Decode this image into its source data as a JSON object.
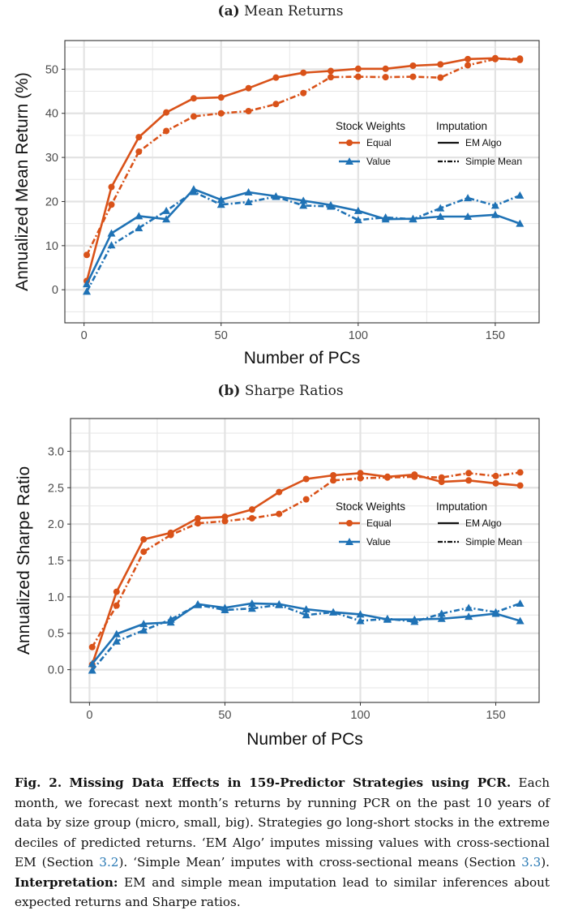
{
  "panels": [
    {
      "label": "(a)",
      "title": "Mean Returns"
    },
    {
      "label": "(b)",
      "title": "Sharpe Ratios"
    }
  ],
  "legend": {
    "weights_title": "Stock Weights",
    "weights": [
      "Equal",
      "Value"
    ],
    "imputation_title": "Imputation",
    "imputation": [
      "EM Algo",
      "Simple Mean"
    ]
  },
  "colors": {
    "equal": "#d95219",
    "value": "#1f72b5",
    "grid": "#e6e6e6"
  },
  "chart_data": [
    {
      "type": "line",
      "title": "Mean Returns",
      "xlabel": "Number of PCs",
      "ylabel": "Annualized Mean Return (%)",
      "xlim": [
        -7,
        166
      ],
      "ylim": [
        -7.5,
        56.5
      ],
      "xticks": [
        0,
        50,
        100,
        150
      ],
      "yticks": [
        0,
        10,
        20,
        30,
        40,
        50
      ],
      "ytick_labels": [
        "0",
        "10",
        "20",
        "30",
        "40",
        "50"
      ],
      "grid": true,
      "legend_position": "right-middle",
      "x": [
        1,
        10,
        20,
        30,
        40,
        50,
        60,
        70,
        80,
        90,
        100,
        110,
        120,
        130,
        140,
        150,
        159
      ],
      "series": [
        {
          "name": "Equal",
          "imputation": "EM Algo",
          "values": [
            2.0,
            23.3,
            34.6,
            40.2,
            43.4,
            43.6,
            45.7,
            48.1,
            49.2,
            49.6,
            50.1,
            50.1,
            50.8,
            51.1,
            52.3,
            52.5,
            52.1
          ]
        },
        {
          "name": "Equal",
          "imputation": "Simple Mean",
          "values": [
            7.9,
            19.3,
            31.3,
            36.0,
            39.3,
            40.0,
            40.5,
            42.1,
            44.6,
            48.2,
            48.3,
            48.2,
            48.3,
            48.1,
            50.9,
            52.3,
            52.4
          ]
        },
        {
          "name": "Value",
          "imputation": "EM Algo",
          "values": [
            1.3,
            12.8,
            16.7,
            16.0,
            22.8,
            20.4,
            22.1,
            21.2,
            20.2,
            19.2,
            17.9,
            16.0,
            16.1,
            16.6,
            16.6,
            17.0,
            15.0
          ]
        },
        {
          "name": "Value",
          "imputation": "Simple Mean",
          "values": [
            -0.4,
            10.1,
            14.0,
            17.9,
            22.2,
            19.3,
            19.9,
            21.1,
            19.1,
            18.9,
            15.8,
            16.4,
            16.0,
            18.5,
            20.8,
            19.1,
            21.4
          ]
        }
      ]
    },
    {
      "type": "line",
      "title": "Sharpe Ratios",
      "xlabel": "Number of PCs",
      "ylabel": "Annualized Sharpe Ratio",
      "xlim": [
        -7,
        166
      ],
      "ylim": [
        -0.45,
        3.45
      ],
      "xticks": [
        0,
        50,
        100,
        150
      ],
      "yticks": [
        0.0,
        0.5,
        1.0,
        1.5,
        2.0,
        2.5,
        3.0
      ],
      "ytick_labels": [
        "0.0",
        "0.5",
        "1.0",
        "1.5",
        "2.0",
        "2.5",
        "3.0"
      ],
      "grid": true,
      "legend_position": "right-middle",
      "x": [
        1,
        10,
        20,
        30,
        40,
        50,
        60,
        70,
        80,
        90,
        100,
        110,
        120,
        130,
        140,
        150,
        159
      ],
      "series": [
        {
          "name": "Equal",
          "imputation": "EM Algo",
          "values": [
            0.07,
            1.07,
            1.79,
            1.88,
            2.08,
            2.1,
            2.2,
            2.44,
            2.62,
            2.67,
            2.7,
            2.65,
            2.68,
            2.58,
            2.6,
            2.56,
            2.53
          ]
        },
        {
          "name": "Equal",
          "imputation": "Simple Mean",
          "values": [
            0.31,
            0.88,
            1.62,
            1.85,
            2.01,
            2.04,
            2.08,
            2.14,
            2.34,
            2.6,
            2.63,
            2.64,
            2.65,
            2.64,
            2.7,
            2.66,
            2.71
          ]
        },
        {
          "name": "Value",
          "imputation": "EM Algo",
          "values": [
            0.08,
            0.49,
            0.63,
            0.65,
            0.9,
            0.85,
            0.91,
            0.9,
            0.83,
            0.79,
            0.76,
            0.69,
            0.69,
            0.7,
            0.73,
            0.77,
            0.67
          ]
        },
        {
          "name": "Value",
          "imputation": "Simple Mean",
          "values": [
            -0.01,
            0.39,
            0.54,
            0.69,
            0.89,
            0.82,
            0.84,
            0.89,
            0.75,
            0.79,
            0.67,
            0.7,
            0.66,
            0.77,
            0.85,
            0.79,
            0.91
          ]
        }
      ]
    }
  ],
  "caption": {
    "fig_label": "Fig. 2.",
    "fig_title": "Missing Data Effects in 159-Predictor Strategies using PCR.",
    "text1": " Each month, we forecast next month’s returns by running PCR on the past 10 years of data by size group (micro, small, big). Strategies go long-short stocks in the extreme deciles of predicted returns. ‘EM Algo’ imputes missing values with cross-sectional EM (Section ",
    "ref1": "3.2",
    "text2": "). ‘Simple Mean’ imputes with cross-sectional means (Section ",
    "ref2": "3.3",
    "text3": "). ",
    "interp_label": "Interpretation:",
    "text4": " EM and simple mean imputation lead to similar inferences about expected returns and Sharpe ratios."
  }
}
